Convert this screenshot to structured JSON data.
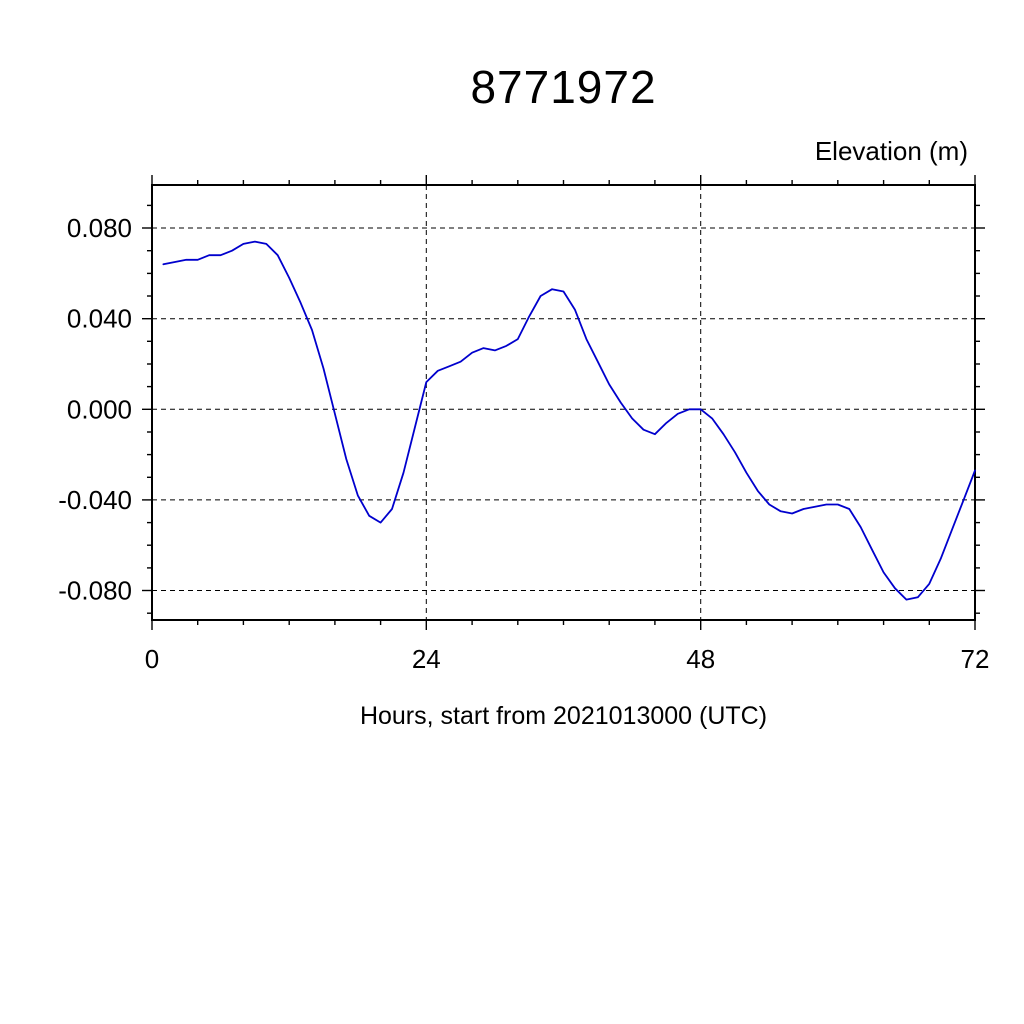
{
  "page": {
    "background": "#ffffff"
  },
  "chart_data": {
    "type": "line",
    "title": "8771972",
    "right_label": "Elevation (m)",
    "xlabel": "Hours, start from 2021013000 (UTC)",
    "ylabel": "",
    "xlim": [
      0,
      72
    ],
    "ylim": [
      -0.093,
      0.099
    ],
    "xticks": [
      0,
      24,
      48,
      72
    ],
    "xtick_labels": [
      "0",
      "24",
      "48",
      "72"
    ],
    "yticks": [
      0.08,
      0.04,
      0.0,
      -0.04,
      -0.08
    ],
    "ytick_labels": [
      "0.080",
      "0.040",
      "0.000",
      "-0.040",
      "-0.080"
    ],
    "x_minor_tick_step": 4,
    "y_minor_tick_step": 0.01,
    "grid": {
      "style": "dashed",
      "vertical_at": [
        24,
        48
      ],
      "horizontal_at_yticks": true
    },
    "line_color": "#0000cd",
    "x": [
      1,
      2,
      3,
      4,
      5,
      6,
      7,
      8,
      9,
      10,
      11,
      12,
      13,
      14,
      15,
      16,
      17,
      18,
      19,
      20,
      21,
      22,
      23,
      24,
      25,
      26,
      27,
      28,
      29,
      30,
      31,
      32,
      33,
      34,
      35,
      36,
      37,
      38,
      39,
      40,
      41,
      42,
      43,
      44,
      45,
      46,
      47,
      48,
      49,
      50,
      51,
      52,
      53,
      54,
      55,
      56,
      57,
      58,
      59,
      60,
      61,
      62,
      63,
      64,
      65,
      66,
      67,
      68,
      69,
      70,
      71,
      72
    ],
    "series": [
      {
        "name": "elevation",
        "color": "#0000cd",
        "values": [
          0.064,
          0.065,
          0.066,
          0.066,
          0.068,
          0.068,
          0.07,
          0.073,
          0.074,
          0.073,
          0.068,
          0.058,
          0.047,
          0.035,
          0.018,
          -0.002,
          -0.022,
          -0.038,
          -0.047,
          -0.05,
          -0.044,
          -0.028,
          -0.008,
          0.012,
          0.017,
          0.019,
          0.021,
          0.025,
          0.027,
          0.026,
          0.028,
          0.031,
          0.041,
          0.05,
          0.053,
          0.052,
          0.044,
          0.031,
          0.021,
          0.011,
          0.003,
          -0.004,
          -0.009,
          -0.011,
          -0.006,
          -0.002,
          0.0,
          0.0,
          -0.004,
          -0.011,
          -0.019,
          -0.028,
          -0.036,
          -0.042,
          -0.045,
          -0.046,
          -0.044,
          -0.043,
          -0.042,
          -0.042,
          -0.044,
          -0.052,
          -0.062,
          -0.072,
          -0.079,
          -0.084,
          -0.083,
          -0.077,
          -0.066,
          -0.053,
          -0.04,
          -0.027
        ]
      }
    ]
  }
}
